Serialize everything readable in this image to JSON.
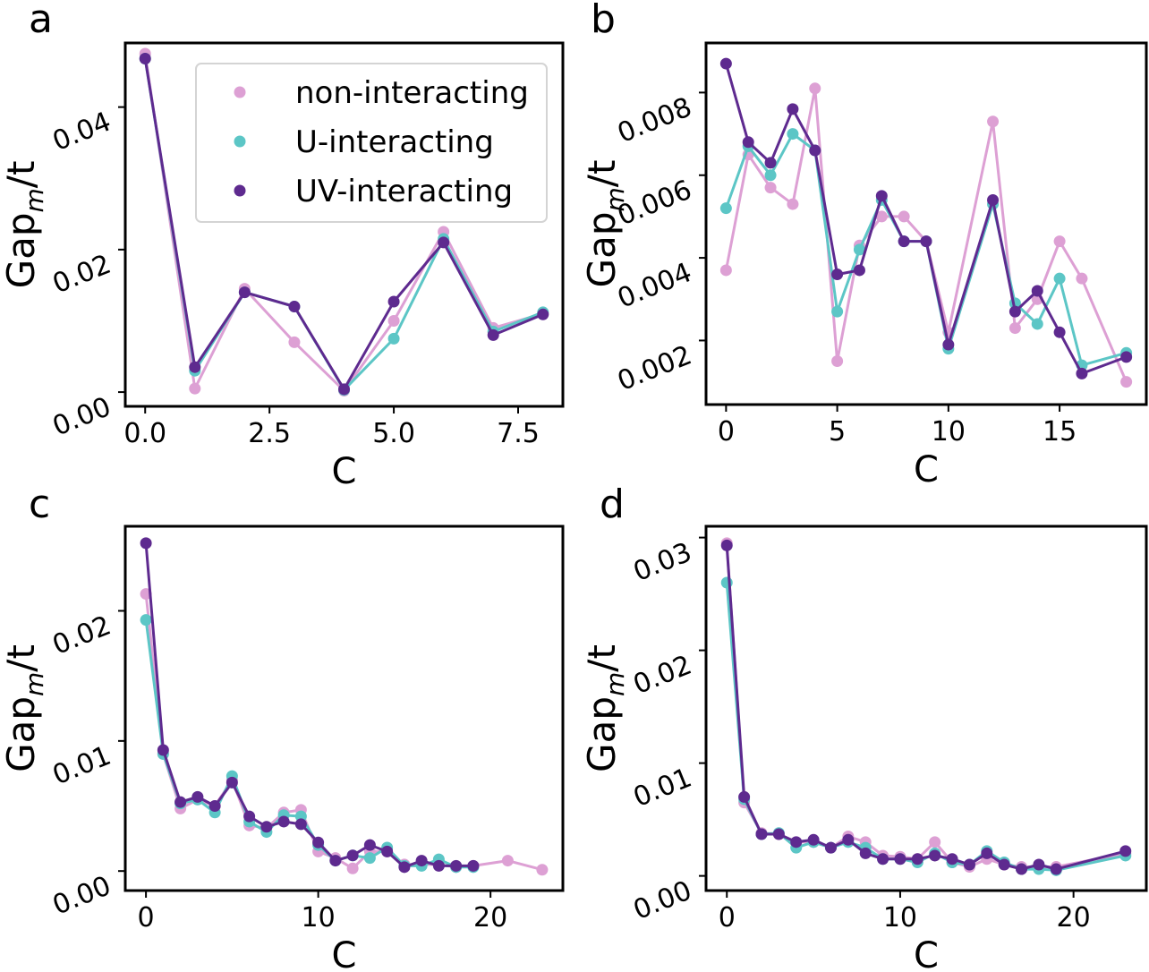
{
  "colors": {
    "non_interacting": "#dda0d4",
    "u_interacting": "#5cc6c6",
    "uv_interacting": "#5e2a8f"
  },
  "chart_data": [
    {
      "panel": "a",
      "type": "line",
      "xlabel": "C",
      "ylabel": "Gap",
      "ylabel_sub": "m",
      "ylabel_tail": "/t",
      "xlim": [
        -0.4,
        8.4
      ],
      "ylim": [
        -0.002,
        0.049
      ],
      "xticks": [
        0,
        2.5,
        5,
        7.5
      ],
      "xtick_labels": [
        "0.0",
        "2.5",
        "5.0",
        "7.5"
      ],
      "yticks": [
        0,
        0.02,
        0.04
      ],
      "ytick_labels": [
        "0.00",
        "0.02",
        "0.04"
      ],
      "legend": {
        "position": "top-right",
        "entries": [
          "non-interacting",
          "U-interacting",
          "UV-interacting"
        ]
      },
      "series": [
        {
          "name": "non-interacting",
          "x": [
            0,
            1,
            2,
            3,
            4,
            5,
            6,
            7,
            8
          ],
          "y": [
            0.0475,
            0.0005,
            0.0145,
            0.007,
            0.0002,
            0.01,
            0.0225,
            0.009,
            0.011
          ]
        },
        {
          "name": "U-interacting",
          "x": [
            0,
            1,
            2,
            3,
            4,
            5,
            6,
            7,
            8
          ],
          "y": [
            0.0468,
            0.003,
            0.014,
            0.012,
            0.0003,
            0.0075,
            0.0215,
            0.0085,
            0.0112
          ]
        },
        {
          "name": "UV-interacting",
          "x": [
            0,
            1,
            2,
            3,
            4,
            5,
            6,
            7,
            8
          ],
          "y": [
            0.0468,
            0.0035,
            0.014,
            0.012,
            0.0004,
            0.0127,
            0.021,
            0.008,
            0.0109
          ]
        }
      ]
    },
    {
      "panel": "b",
      "type": "line",
      "xlabel": "C",
      "ylabel": "Gap",
      "ylabel_sub": "m",
      "ylabel_tail": "/t",
      "xlim": [
        -0.9,
        18.9
      ],
      "ylim": [
        0.00045,
        0.0092
      ],
      "xticks": [
        0,
        5,
        10,
        15
      ],
      "xtick_labels": [
        "0",
        "5",
        "10",
        "15"
      ],
      "yticks": [
        0.002,
        0.004,
        0.006,
        0.008
      ],
      "ytick_labels": [
        "0.002",
        "0.004",
        "0.006",
        "0.008"
      ],
      "series": [
        {
          "name": "non-interacting",
          "x": [
            0,
            1,
            2,
            3,
            4,
            5,
            6,
            7,
            8,
            9,
            10,
            12,
            13,
            14,
            15,
            16,
            18
          ],
          "y": [
            0.0037,
            0.0065,
            0.0057,
            0.0053,
            0.0081,
            0.0015,
            0.0043,
            0.005,
            0.005,
            0.0044,
            0.0022,
            0.0073,
            0.0023,
            0.003,
            0.0044,
            0.0035,
            0.001
          ]
        },
        {
          "name": "U-interacting",
          "x": [
            0,
            1,
            2,
            3,
            4,
            5,
            6,
            7,
            8,
            9,
            10,
            12,
            13,
            14,
            15,
            16,
            18
          ],
          "y": [
            0.0052,
            0.0067,
            0.006,
            0.007,
            0.0066,
            0.0027,
            0.0042,
            0.0054,
            0.0044,
            0.0044,
            0.0018,
            0.0053,
            0.0029,
            0.0024,
            0.0035,
            0.0014,
            0.0017
          ]
        },
        {
          "name": "UV-interacting",
          "x": [
            0,
            1,
            2,
            3,
            4,
            5,
            6,
            7,
            8,
            9,
            10,
            12,
            13,
            14,
            15,
            16,
            18
          ],
          "y": [
            0.0087,
            0.0068,
            0.0063,
            0.0076,
            0.0066,
            0.0036,
            0.0037,
            0.0055,
            0.0044,
            0.0044,
            0.0019,
            0.0054,
            0.0027,
            0.0032,
            0.0022,
            0.0012,
            0.0016
          ]
        }
      ]
    },
    {
      "panel": "c",
      "type": "line",
      "xlabel": "C",
      "ylabel": "Gap",
      "ylabel_sub": "m",
      "ylabel_tail": "/t",
      "xlim": [
        -1.2,
        24.2
      ],
      "ylim": [
        -0.0015,
        0.0265
      ],
      "xticks": [
        0,
        10,
        20
      ],
      "xtick_labels": [
        "0",
        "10",
        "20"
      ],
      "yticks": [
        0,
        0.01,
        0.02
      ],
      "ytick_labels": [
        "0.00",
        "0.01",
        "0.02"
      ],
      "series": [
        {
          "name": "non-interacting",
          "x": [
            0,
            1,
            2,
            3,
            4,
            5,
            6,
            7,
            8,
            9,
            10,
            11,
            12,
            13,
            14,
            15,
            16,
            17,
            18,
            19,
            21,
            23
          ],
          "y": [
            0.0213,
            0.009,
            0.0048,
            0.0055,
            0.005,
            0.007,
            0.0035,
            0.0033,
            0.0045,
            0.0047,
            0.0015,
            0.001,
            0.0002,
            0.0015,
            0.0015,
            0.0005,
            0.0005,
            0.0005,
            0.0003,
            0.0004,
            0.0008,
            0.0001
          ]
        },
        {
          "name": "U-interacting",
          "x": [
            0,
            1,
            2,
            3,
            4,
            5,
            6,
            7,
            8,
            9,
            10,
            11,
            12,
            13,
            14,
            15,
            16,
            17,
            18,
            19
          ],
          "y": [
            0.0193,
            0.009,
            0.0052,
            0.0055,
            0.0045,
            0.0073,
            0.0038,
            0.003,
            0.0043,
            0.0042,
            0.002,
            0.0008,
            0.0012,
            0.001,
            0.0018,
            0.0004,
            0.0004,
            0.0009,
            0.0003,
            0.0003
          ]
        },
        {
          "name": "UV-interacting",
          "x": [
            0,
            1,
            2,
            3,
            4,
            5,
            6,
            7,
            8,
            9,
            10,
            11,
            12,
            13,
            14,
            15,
            16,
            17,
            18,
            19
          ],
          "y": [
            0.0252,
            0.0093,
            0.0053,
            0.0057,
            0.005,
            0.0068,
            0.0042,
            0.0034,
            0.0038,
            0.0036,
            0.0022,
            0.0008,
            0.0012,
            0.002,
            0.0015,
            0.0003,
            0.0008,
            0.0004,
            0.0004,
            0.0004
          ]
        }
      ]
    },
    {
      "panel": "d",
      "type": "line",
      "xlabel": "C",
      "ylabel": "Gap",
      "ylabel_sub": "m",
      "ylabel_tail": "/t",
      "xlim": [
        -1.2,
        24.2
      ],
      "ylim": [
        -0.0013,
        0.031
      ],
      "xticks": [
        0,
        10,
        20
      ],
      "xtick_labels": [
        "0",
        "10",
        "20"
      ],
      "yticks": [
        0,
        0.01,
        0.02,
        0.03
      ],
      "ytick_labels": [
        "0.00",
        "0.01",
        "0.02",
        "0.03"
      ],
      "series": [
        {
          "name": "non-interacting",
          "x": [
            0,
            1,
            2,
            3,
            4,
            5,
            6,
            7,
            8,
            9,
            10,
            11,
            12,
            13,
            14,
            15,
            16,
            17,
            18,
            19,
            23
          ],
          "y": [
            0.0295,
            0.0065,
            0.0038,
            0.0037,
            0.003,
            0.003,
            0.0025,
            0.0035,
            0.003,
            0.0018,
            0.0017,
            0.0015,
            0.003,
            0.0012,
            0.0008,
            0.0015,
            0.001,
            0.0008,
            0.0008,
            0.0008,
            0.002
          ]
        },
        {
          "name": "U-interacting",
          "x": [
            0,
            1,
            2,
            3,
            4,
            5,
            6,
            7,
            8,
            9,
            10,
            11,
            12,
            13,
            14,
            15,
            16,
            17,
            18,
            19,
            23
          ],
          "y": [
            0.026,
            0.0068,
            0.0037,
            0.0038,
            0.0025,
            0.003,
            0.0025,
            0.003,
            0.0025,
            0.0015,
            0.0015,
            0.0012,
            0.002,
            0.0012,
            0.001,
            0.0022,
            0.0012,
            0.0006,
            0.0006,
            0.0005,
            0.0018
          ]
        },
        {
          "name": "UV-interacting",
          "x": [
            0,
            1,
            2,
            3,
            4,
            5,
            6,
            7,
            8,
            9,
            10,
            11,
            12,
            13,
            14,
            15,
            16,
            17,
            18,
            19,
            23
          ],
          "y": [
            0.0293,
            0.007,
            0.0037,
            0.0037,
            0.003,
            0.0032,
            0.0025,
            0.0032,
            0.002,
            0.0015,
            0.0015,
            0.0015,
            0.0018,
            0.0015,
            0.001,
            0.002,
            0.001,
            0.0006,
            0.001,
            0.0006,
            0.0022
          ]
        }
      ]
    }
  ],
  "panel_labels": [
    "a",
    "b",
    "c",
    "d"
  ]
}
